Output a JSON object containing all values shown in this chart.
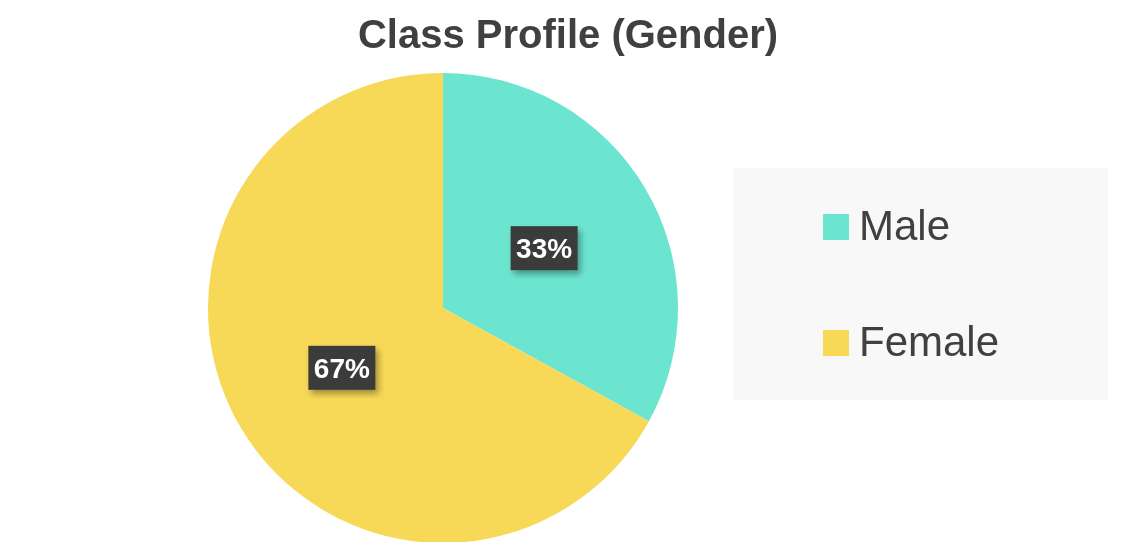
{
  "chart_data": {
    "type": "pie",
    "title": "Class Profile (Gender)",
    "categories": [
      "Male",
      "Female"
    ],
    "values": [
      33,
      67
    ],
    "colors": [
      "#6ce5d0",
      "#f7d857"
    ],
    "value_labels": [
      "33%",
      "67%"
    ],
    "legend": "right"
  }
}
